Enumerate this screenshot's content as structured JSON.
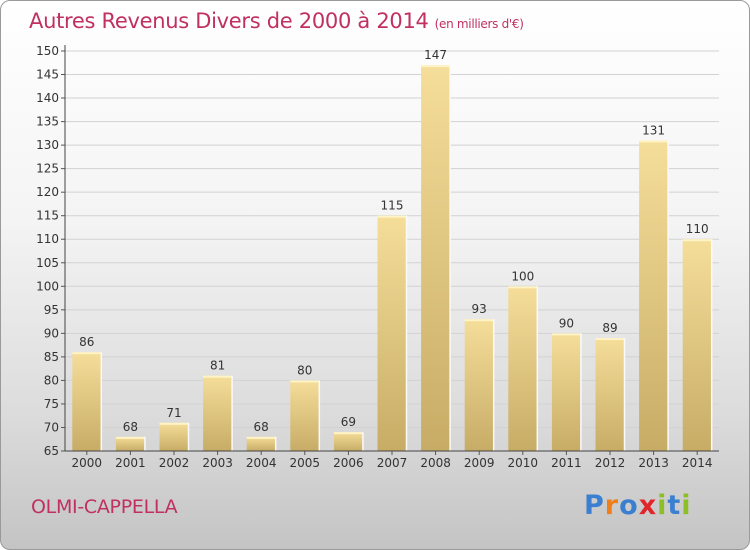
{
  "title": "Autres Revenus Divers de 2000 à 2014",
  "subtitle": "(en milliers d'€)",
  "city": "OLMI-CAPPELLA",
  "logo": {
    "text": "Proxiti",
    "letter_colors": [
      "#3a7fd0",
      "#ef7f1a",
      "#3a7fd0",
      "#e0262b",
      "#8cbf26",
      "#3a7fd0",
      "#8cbf26"
    ]
  },
  "chart_data": {
    "type": "bar",
    "categories": [
      "2000",
      "2001",
      "2002",
      "2003",
      "2004",
      "2005",
      "2006",
      "2007",
      "2008",
      "2009",
      "2010",
      "2011",
      "2012",
      "2013",
      "2014"
    ],
    "values": [
      86,
      68,
      71,
      81,
      68,
      80,
      69,
      115,
      147,
      93,
      100,
      90,
      89,
      131,
      110
    ],
    "ylim": [
      65,
      150
    ],
    "yticks": [
      65,
      70,
      75,
      80,
      85,
      90,
      95,
      100,
      105,
      110,
      115,
      120,
      125,
      130,
      135,
      140,
      145,
      150
    ],
    "grid": true,
    "bar_color": "#e8cd84"
  }
}
